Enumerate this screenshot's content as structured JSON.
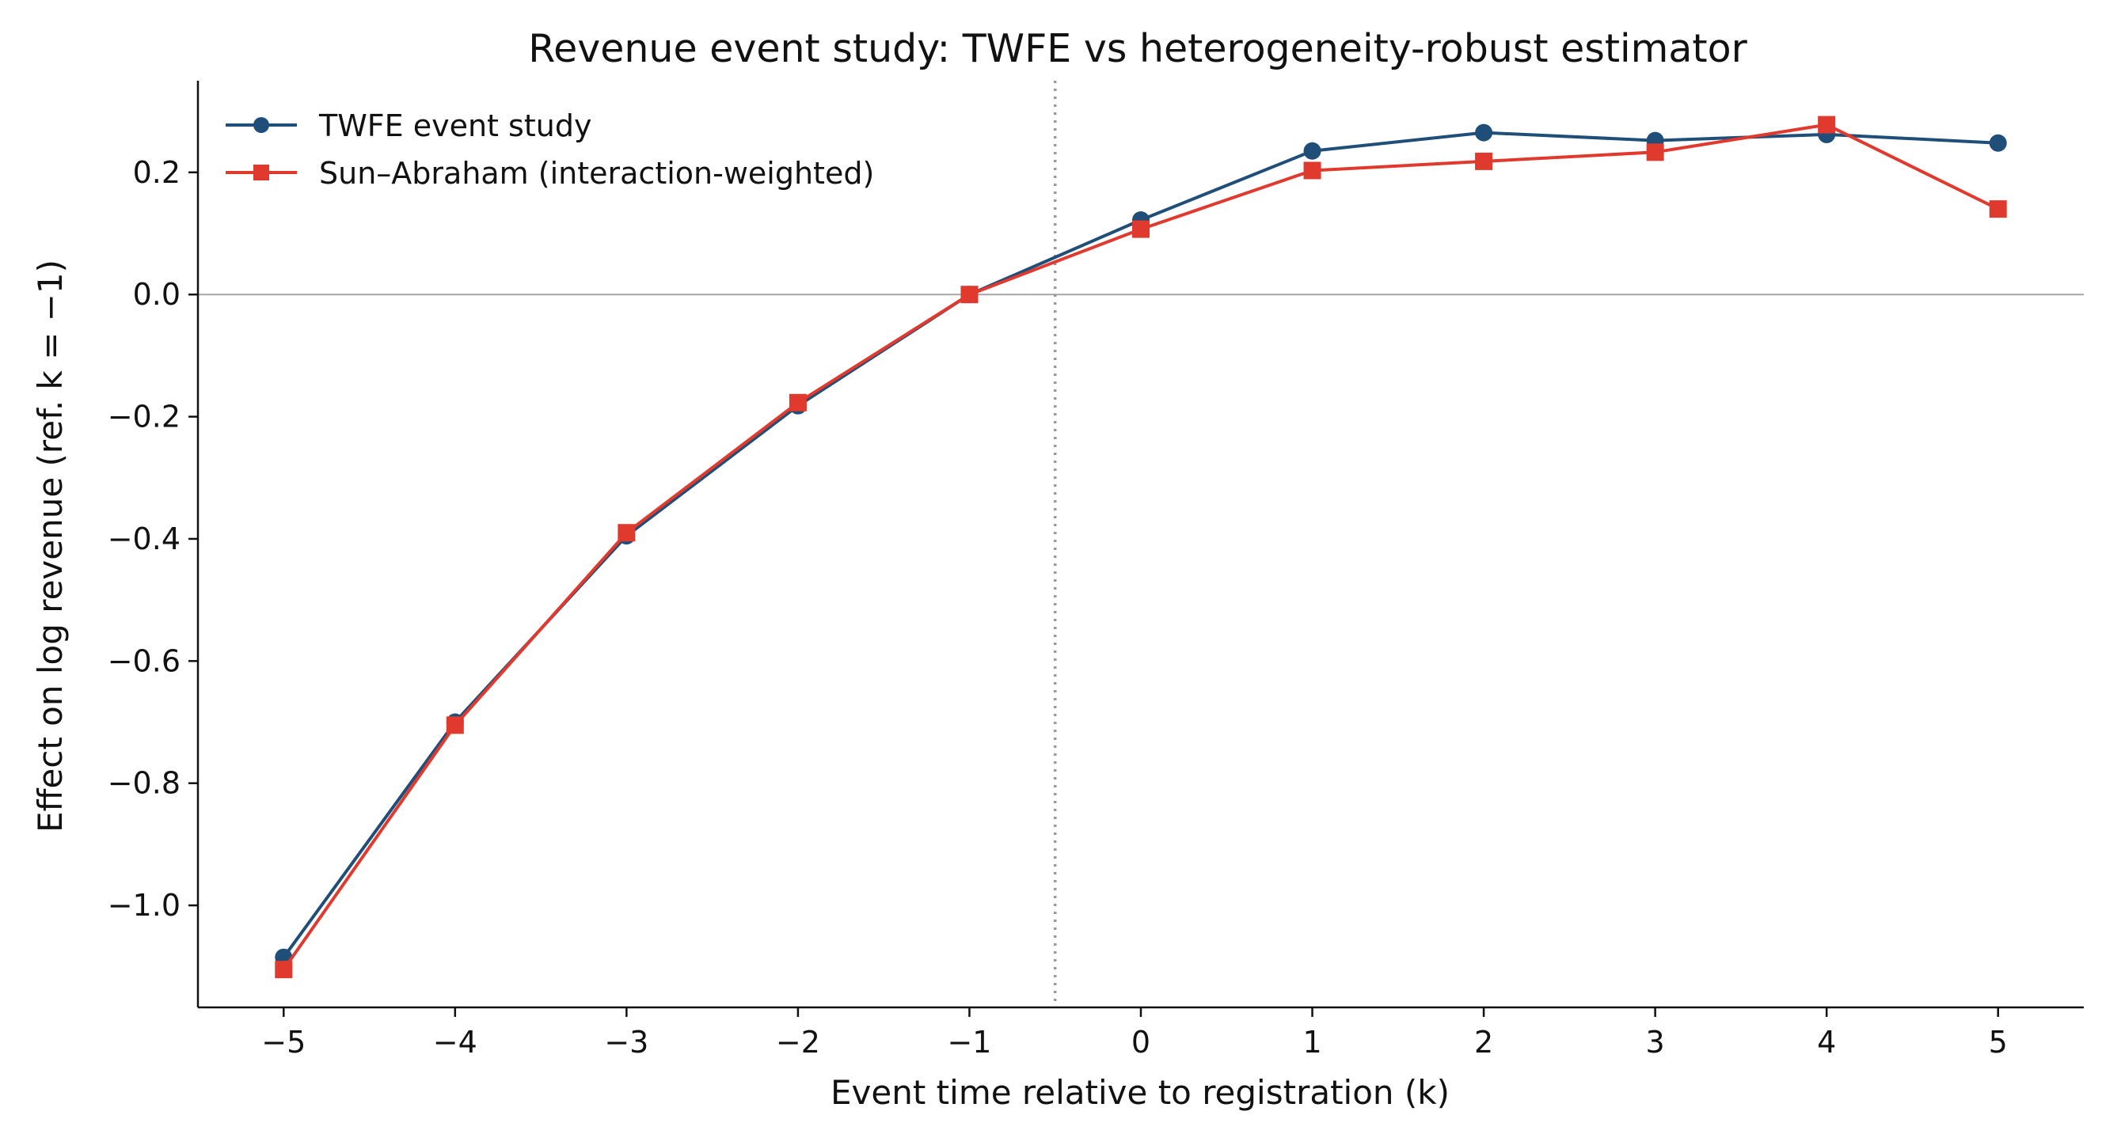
{
  "chart_data": {
    "type": "line",
    "title": "Revenue event study: TWFE vs heterogeneity-robust estimator",
    "xlabel": "Event time relative to registration (k)",
    "ylabel": "Effect on log revenue (ref. k = −1)",
    "x": [
      -5,
      -4,
      -3,
      -2,
      -1,
      0,
      1,
      2,
      3,
      4,
      5
    ],
    "x_tick_labels": [
      "−5",
      "−4",
      "−3",
      "−2",
      "−1",
      "0",
      "1",
      "2",
      "3",
      "4",
      "5"
    ],
    "y_ticks": [
      -1.0,
      -0.8,
      -0.6,
      -0.4,
      -0.2,
      0.0,
      0.2
    ],
    "y_tick_labels": [
      "−1.0",
      "−0.8",
      "−0.6",
      "−0.4",
      "−0.2",
      "0.0",
      "0.2"
    ],
    "xlim": [
      -5.5,
      5.5
    ],
    "ylim": [
      -1.167,
      0.35
    ],
    "grid": false,
    "legend_position": "top-left",
    "reference_lines": {
      "horizontal_y": 0.0,
      "horizontal_color": "#aaaaaa",
      "vertical_x": -0.5,
      "vertical_color": "#999999",
      "vertical_style": "dotted"
    },
    "series": [
      {
        "name": "TWFE event study",
        "color": "#1f4e79",
        "marker": "circle",
        "values": [
          -1.085,
          -0.7,
          -0.395,
          -0.182,
          0.0,
          0.122,
          0.235,
          0.265,
          0.252,
          0.262,
          0.248
        ]
      },
      {
        "name": "Sun–Abraham (interaction-weighted)",
        "color": "#e03a2f",
        "marker": "square",
        "values": [
          -1.105,
          -0.705,
          -0.39,
          -0.177,
          0.0,
          0.107,
          0.203,
          0.218,
          0.233,
          0.278,
          0.14
        ]
      }
    ]
  }
}
